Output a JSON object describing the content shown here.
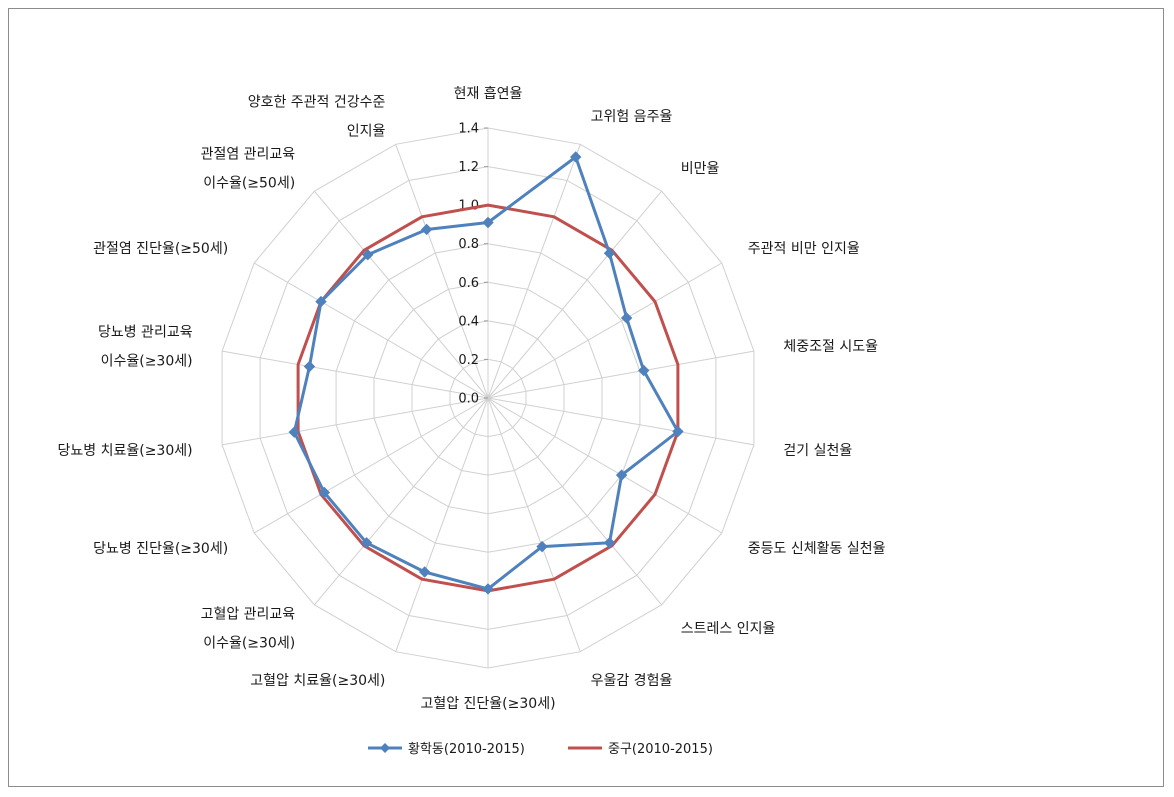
{
  "chart_data": {
    "type": "radar",
    "categories": [
      [
        "현재 흡연율"
      ],
      [
        "고위험 음주율"
      ],
      [
        "비만율"
      ],
      [
        "주관적 비만 인지율"
      ],
      [
        "체중조절 시도율"
      ],
      [
        "걷기 실천율"
      ],
      [
        "중등도 신체활동 실천율"
      ],
      [
        "스트레스 인지율"
      ],
      [
        "우울감 경험율"
      ],
      [
        "고혈압 진단율(≥30세)"
      ],
      [
        "고혈압 치료율(≥30세)"
      ],
      [
        "고혈압 관리교육",
        "이수율(≥30세)"
      ],
      [
        "당뇨병 진단율(≥30세)"
      ],
      [
        "당뇨병 치료율(≥30세)"
      ],
      [
        "당뇨병 관리교육",
        "이수율(≥30세)"
      ],
      [
        "관절염 진단율(≥50세)"
      ],
      [
        "관절염 관리교육",
        "이수율(≥50세)"
      ],
      [
        "양호한 주관적 건강수준",
        "인지율"
      ]
    ],
    "ticks": [
      "0.0",
      "0.2",
      "0.4",
      "0.6",
      "0.8",
      "1.0",
      "1.2",
      "1.4"
    ],
    "rmax": 1.4,
    "series": [
      {
        "name": "황학동(2010-2015)",
        "color": "#4f81bd",
        "marker": "diamond",
        "values": [
          0.91,
          1.33,
          0.98,
          0.83,
          0.82,
          1.0,
          0.8,
          0.98,
          0.82,
          0.99,
          0.96,
          0.98,
          0.98,
          1.02,
          0.94,
          1.0,
          0.97,
          0.93
        ]
      },
      {
        "name": "중구(2010-2015)",
        "color": "#c0504d",
        "marker": "none",
        "values": [
          1.0,
          1.0,
          1.0,
          1.0,
          1.0,
          1.0,
          1.0,
          1.0,
          1.0,
          1.0,
          1.0,
          1.0,
          1.0,
          1.0,
          1.0,
          1.0,
          1.0,
          1.0
        ]
      }
    ],
    "grid": true,
    "legend": "bottom"
  }
}
